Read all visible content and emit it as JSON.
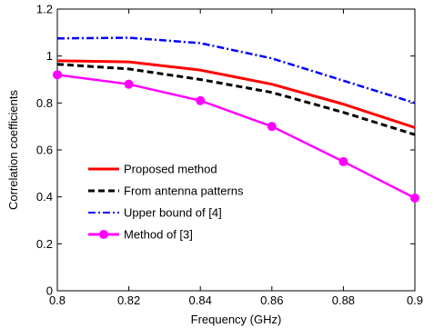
{
  "chart_data": {
    "type": "line",
    "title": "",
    "xlabel": "Frequency (GHz)",
    "ylabel": "Correlation coefficients",
    "xlim": [
      0.8,
      0.9
    ],
    "ylim": [
      0,
      1.2
    ],
    "xticks": [
      0.8,
      0.82,
      0.84,
      0.86,
      0.88,
      0.9
    ],
    "yticks": [
      0,
      0.2,
      0.4,
      0.6,
      0.8,
      1,
      1.2
    ],
    "xtick_labels": [
      "0.8",
      "0.82",
      "0.84",
      "0.86",
      "0.88",
      "0.9"
    ],
    "ytick_labels": [
      "0",
      "0.2",
      "0.4",
      "0.6",
      "0.8",
      "1",
      "1.2"
    ],
    "grid": false,
    "legend_position": "lower-left",
    "series": [
      {
        "name": "Proposed method",
        "color": "#ff0000",
        "style": "solid",
        "marker": "none",
        "x": [
          0.8,
          0.82,
          0.84,
          0.86,
          0.88,
          0.9
        ],
        "y": [
          0.98,
          0.975,
          0.94,
          0.88,
          0.795,
          0.695
        ]
      },
      {
        "name": "From antenna patterns",
        "color": "#000000",
        "style": "dashed",
        "marker": "none",
        "x": [
          0.8,
          0.82,
          0.84,
          0.86,
          0.88,
          0.9
        ],
        "y": [
          0.965,
          0.945,
          0.9,
          0.845,
          0.76,
          0.665
        ]
      },
      {
        "name": "Upper bound of [4]",
        "color": "#0000ff",
        "style": "dashdot",
        "marker": "none",
        "x": [
          0.8,
          0.82,
          0.84,
          0.86,
          0.88,
          0.9
        ],
        "y": [
          1.075,
          1.078,
          1.055,
          0.99,
          0.895,
          0.8
        ]
      },
      {
        "name": "Method of [3]",
        "color": "#ff00ff",
        "style": "solid",
        "marker": "circle",
        "x": [
          0.8,
          0.82,
          0.84,
          0.86,
          0.88,
          0.9
        ],
        "y": [
          0.92,
          0.88,
          0.81,
          0.7,
          0.55,
          0.395
        ]
      }
    ]
  }
}
